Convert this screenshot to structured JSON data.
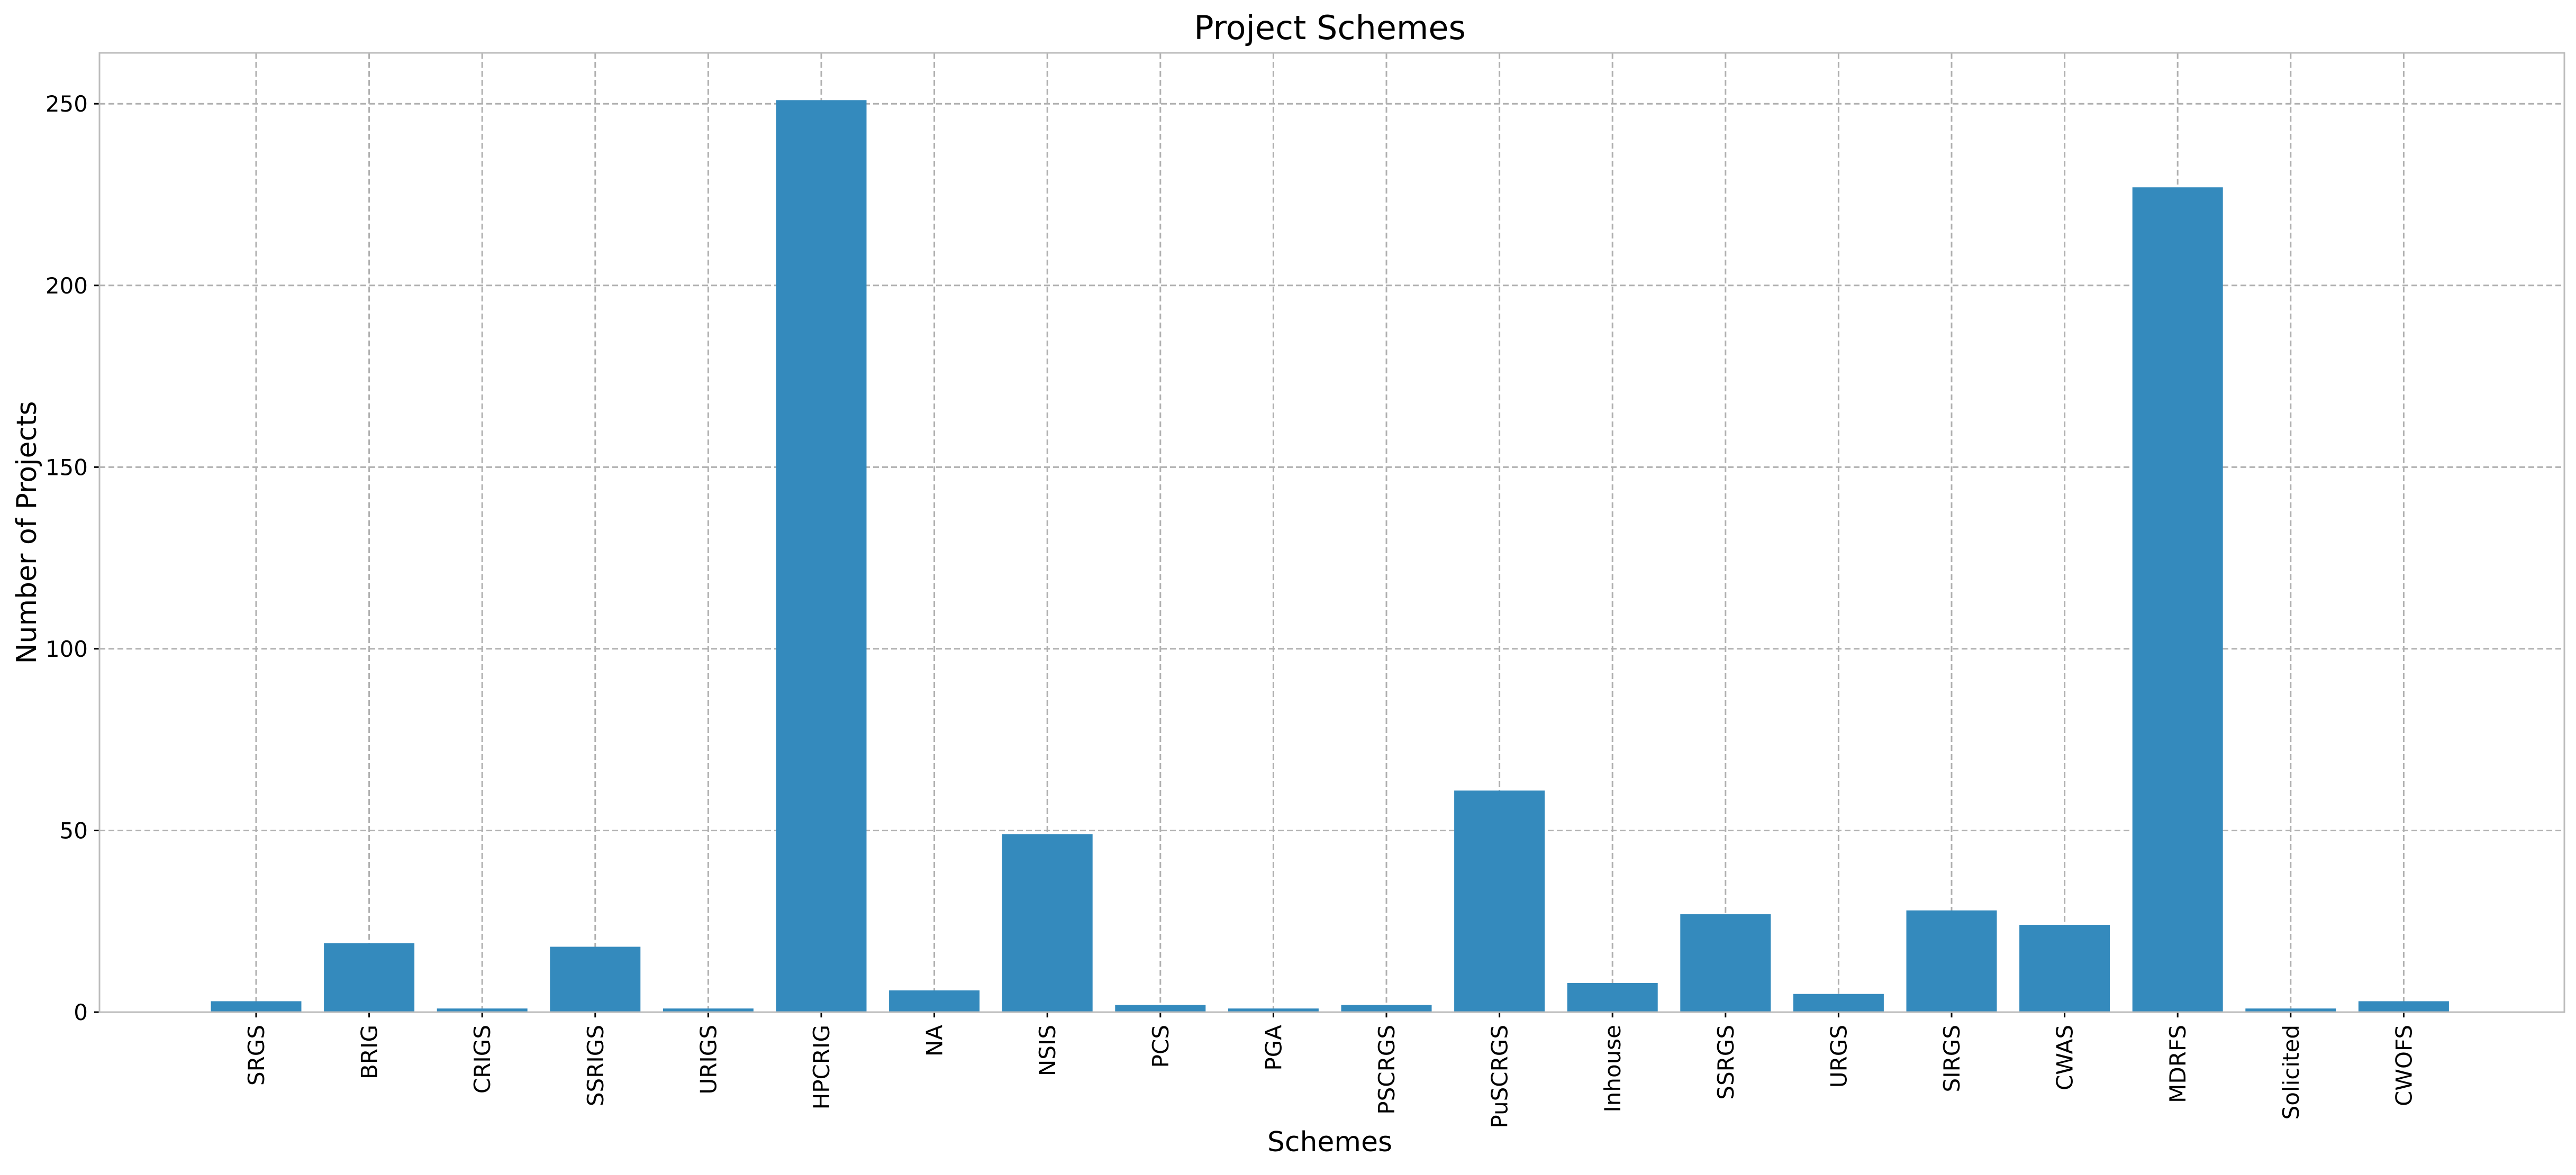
{
  "chart_data": {
    "type": "bar",
    "title": "Project Schemes",
    "xlabel": "Schemes",
    "ylabel": "Number of Projects",
    "categories": [
      "SRGS",
      "BRIG",
      "CRIGS",
      "SSRIGS",
      "URIGS",
      "HPCRIG",
      "NA",
      "NSIS",
      "PCS",
      "PGA",
      "PSCRGS",
      "PuSCRGS",
      "Inhouse",
      "SSRGS",
      "URGS",
      "SIRGS",
      "CWAS",
      "MDRFS",
      "Solicited",
      "CWOFS"
    ],
    "values": [
      3,
      19,
      1,
      18,
      1,
      251,
      6,
      49,
      2,
      1,
      2,
      61,
      8,
      27,
      5,
      28,
      24,
      227,
      1,
      3
    ],
    "ylim": [
      0,
      264
    ],
    "yticks": [
      0,
      50,
      100,
      150,
      200,
      250
    ],
    "grid": true,
    "bar_color": "#348abd",
    "legend": "none"
  }
}
